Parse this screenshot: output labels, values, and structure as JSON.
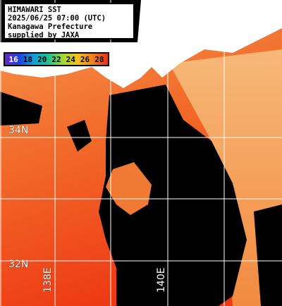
{
  "info": {
    "line1": "HIMAWARI SST",
    "line2": "2025/06/25 07:00 (UTC)",
    "line3": "Kanagawa Prefecture",
    "line4": "supplied by JAXA"
  },
  "legend": {
    "ticks": [
      "16",
      "18",
      "20",
      "22",
      "24",
      "26",
      "28"
    ],
    "colors": [
      "#6a28c8",
      "#2040e0",
      "#10a0d8",
      "#20c090",
      "#a8d830",
      "#f0c020",
      "#f08020",
      "#e83020"
    ]
  },
  "grid": {
    "lat_labels": [
      "34N",
      "32N"
    ],
    "lon_labels": [
      "138E",
      "140E"
    ]
  },
  "colors": {
    "land": "#ffffff",
    "cloud": "#000000",
    "sst_warm": "#f04a1a",
    "sst_mid": "#f08a3a",
    "sst_cool": "#f8b070",
    "grid_line": "#ffffff"
  }
}
